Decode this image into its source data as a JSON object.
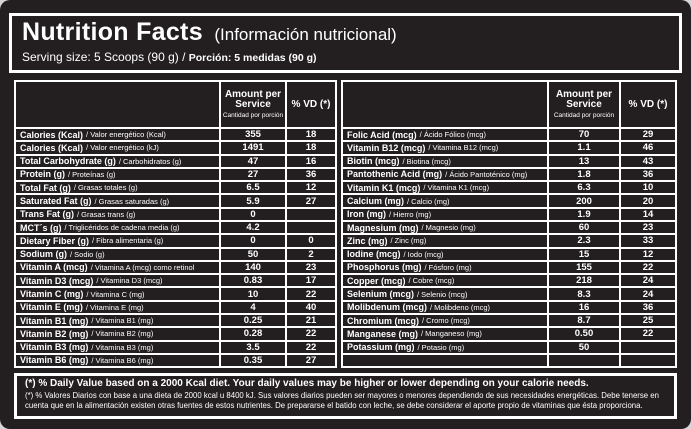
{
  "separator": " / ",
  "colors": {
    "background": "#231f20",
    "text": "#ffffff",
    "border": "#ffffff",
    "outer_frame": "#d6d6d6"
  },
  "header": {
    "title": "Nutrition Facts",
    "subtitle": "(Información nutricional)",
    "serving_en": "Serving size: 5 Scoops (90 g)",
    "serving_es": "Porción: 5 medidas (90 g)"
  },
  "columns": {
    "amount_label": "Amount per Service",
    "amount_sublabel": "Cantidad por porción",
    "vd_label": "% VD (*)"
  },
  "left_table": {
    "rows": [
      {
        "en": "Calories (Kcal)",
        "es": "Valor energético (Kcal)",
        "amount": "355",
        "vd": "18"
      },
      {
        "en": "Calories (Kcal)",
        "es": "Valor energético (kJ)",
        "amount": "1491",
        "vd": "18"
      },
      {
        "en": "Total Carbohydrate (g)",
        "es": "Carbohidratos (g)",
        "amount": "47",
        "vd": "16"
      },
      {
        "en": "Protein (g)",
        "es": "Proteínas (g)",
        "amount": "27",
        "vd": "36"
      },
      {
        "en": "Total Fat (g)",
        "es": "Grasas totales (g)",
        "amount": "6.5",
        "vd": "12"
      },
      {
        "en": "Saturated Fat (g)",
        "es": "Grasas saturadas (g)",
        "amount": "5.9",
        "vd": "27"
      },
      {
        "en": "Trans Fat (g)",
        "es": "Grasas trans (g)",
        "amount": "0",
        "vd": ""
      },
      {
        "en": "MCT´s (g)",
        "es": "Triglicéridos de cadena media (g)",
        "amount": "4.2",
        "vd": ""
      },
      {
        "en": "Dietary Fiber (g)",
        "es": "Fibra alimentaria (g)",
        "amount": "0",
        "vd": "0"
      },
      {
        "en": "Sodium (g)",
        "es": "Sodio (g)",
        "amount": "50",
        "vd": "2"
      },
      {
        "en": "Vitamin A (mcg)",
        "es": "Vitamina A (mcg) como retinol",
        "amount": "140",
        "vd": "23"
      },
      {
        "en": "Vitamin D3 (mcg)",
        "es": "Vitamina D3 (mcg)",
        "amount": "0.83",
        "vd": "17"
      },
      {
        "en": "Vitamin C (mg)",
        "es": "Vitamina C (mg)",
        "amount": "10",
        "vd": "22"
      },
      {
        "en": "Vitamin E (mg)",
        "es": "Vitamina E (mg)",
        "amount": "4",
        "vd": "40"
      },
      {
        "en": "Vitamin B1 (mg)",
        "es": "Vitamina B1 (mg)",
        "amount": "0.25",
        "vd": "21"
      },
      {
        "en": "Vitamin B2 (mg)",
        "es": "Vitamina B2 (mg)",
        "amount": "0.28",
        "vd": "22"
      },
      {
        "en": "Vitamin B3 (mg)",
        "es": "Vitamina B3 (mg)",
        "amount": "3.5",
        "vd": "22"
      },
      {
        "en": "Vitamin B6 (mg)",
        "es": "Vitamina B6 (mg)",
        "amount": "0.35",
        "vd": "27"
      }
    ]
  },
  "right_table": {
    "rows": [
      {
        "en": "Folic Acid (mcg)",
        "es": "Ácido Fólico (mcg)",
        "amount": "70",
        "vd": "29"
      },
      {
        "en": "Vitamin B12 (mcg)",
        "es": "Vitamina B12 (mcg)",
        "amount": "1.1",
        "vd": "46"
      },
      {
        "en": "Biotin (mcg)",
        "es": "Biotina (mcg)",
        "amount": "13",
        "vd": "43"
      },
      {
        "en": "Pantothenic Acid (mg)",
        "es": "Ácido Pantoténico (mg)",
        "amount": "1.8",
        "vd": "36"
      },
      {
        "en": "Vitamin K1 (mcg)",
        "es": "Vitamina K1 (mcg)",
        "amount": "6.3",
        "vd": "10"
      },
      {
        "en": "Calcium (mg)",
        "es": "Calcio (mg)",
        "amount": "200",
        "vd": "20"
      },
      {
        "en": "Iron (mg)",
        "es": "Hierro (mg)",
        "amount": "1.9",
        "vd": "14"
      },
      {
        "en": "Magnesium (mg)",
        "es": "Magnesio (mg)",
        "amount": "60",
        "vd": "23"
      },
      {
        "en": "Zinc (mg)",
        "es": "Zinc (mg)",
        "amount": "2.3",
        "vd": "33"
      },
      {
        "en": "Iodine (mcg)",
        "es": "Iodo (mcg)",
        "amount": "15",
        "vd": "12"
      },
      {
        "en": "Phosphorus (mg)",
        "es": "Fósforo (mg)",
        "amount": "155",
        "vd": "22"
      },
      {
        "en": "Copper (mcg)",
        "es": "Cobre (mcg)",
        "amount": "218",
        "vd": "24"
      },
      {
        "en": "Selenium (mcg)",
        "es": "Selenio (mcg)",
        "amount": "8.3",
        "vd": "24"
      },
      {
        "en": "Molibdenum (mcg)",
        "es": "Molibdeno (mcg)",
        "amount": "16",
        "vd": "36"
      },
      {
        "en": "Chromium (mcg)",
        "es": "Cromo (mcg)",
        "amount": "8.7",
        "vd": "25"
      },
      {
        "en": "Manganese (mg)",
        "es": "Manganeso (mg)",
        "amount": "0.50",
        "vd": "22"
      },
      {
        "en": "Potassium (mg)",
        "es": "Potasio (mg)",
        "amount": "50",
        "vd": ""
      },
      {
        "en": "",
        "es": "",
        "amount": "",
        "vd": ""
      }
    ]
  },
  "footnote": {
    "line_en": "(*) % Daily Value based on a 2000 Kcal diet. Your daily values may be higher or lower depending on your calorie needs.",
    "line_es": "(*) % Valores Diarios con base a una dieta de 2000 kcal u 8400 kJ. Sus valores diarios pueden ser mayores o menores dependiendo de sus necesidades energéticas. Debe tenerse en cuenta que en la alimentación existen otras fuentes de estos nutrientes. De prepararse el batido con leche, se debe considerar el aporte propio de vitaminas que ésta proporciona."
  }
}
